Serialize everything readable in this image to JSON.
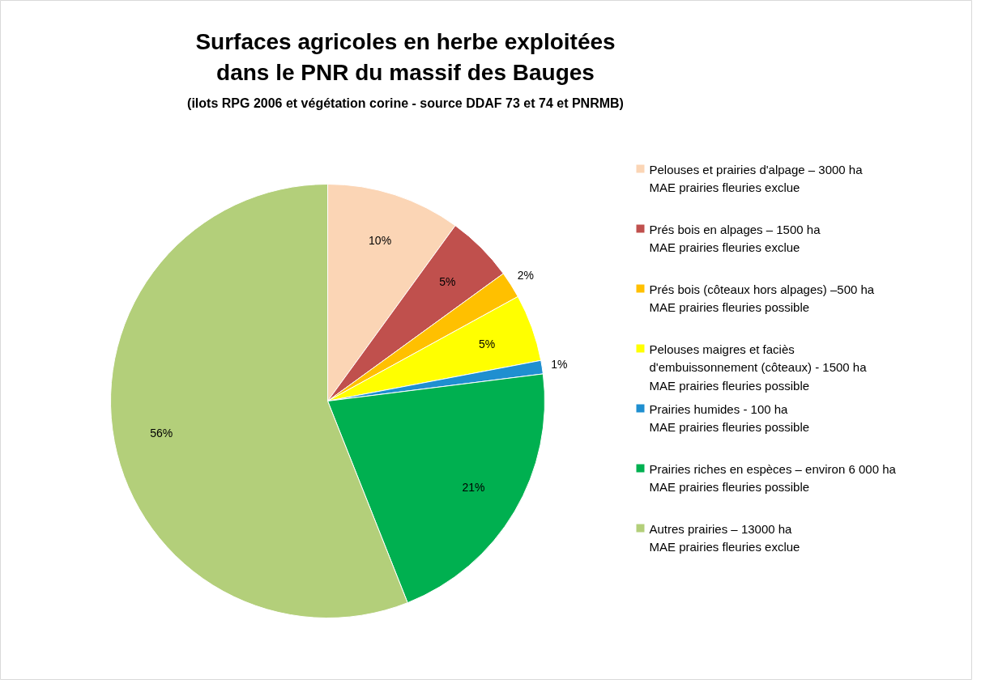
{
  "chart_data": {
    "type": "pie",
    "title": "Surfaces agricoles en herbe exploitées\ndans le PNR du massif des Bauges",
    "subtitle": "(ilots RPG 2006 et végétation corine - source DDAF 73 et 74 et PNRMB)",
    "categories": [
      "Pelouses et prairies d'alpage – 3000 ha\nMAE prairies fleuries exclue",
      "Prés bois en alpages – 1500 ha\nMAE prairies fleuries exclue",
      "Prés bois (côteaux hors alpages) –500 ha\nMAE prairies fleuries possible",
      "Pelouses maigres et faciès\nd'embuissonnement (côteaux) - 1500 ha\nMAE prairies fleuries possible",
      "Prairies humides - 100 ha\nMAE prairies fleuries possible",
      "Prairies riches en espèces – environ 6 000 ha\nMAE prairies fleuries possible",
      "Autres prairies  – 13000 ha\nMAE prairies fleuries exclue"
    ],
    "values": [
      10,
      5,
      2,
      5,
      1,
      21,
      56
    ],
    "colors": [
      "#fbd5b5",
      "#c0504d",
      "#ffc000",
      "#ffff00",
      "#1f8fd0",
      "#00b050",
      "#b3cf7a"
    ],
    "value_labels": [
      "10%",
      "5%",
      "2%",
      "5%",
      "1%",
      "21%",
      "56%"
    ],
    "legend": "right"
  }
}
